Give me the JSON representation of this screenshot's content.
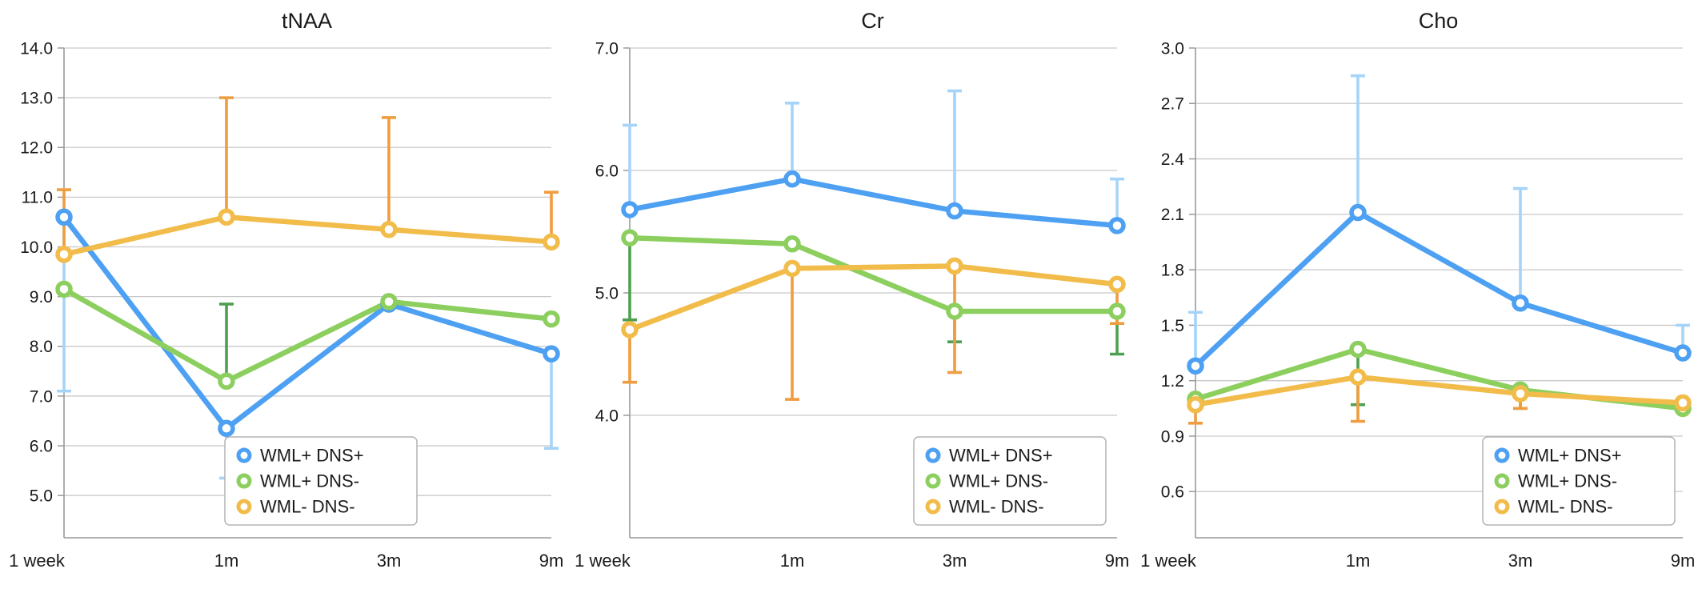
{
  "chart_data": [
    {
      "type": "line",
      "title": "tNAA",
      "categories": [
        "1 week",
        "1m",
        "3m",
        "9m"
      ],
      "xlabel": "",
      "ylabel": "",
      "grid": true,
      "y_ticks": [
        5.0,
        6.0,
        7.0,
        8.0,
        9.0,
        10.0,
        11.0,
        12.0,
        13.0,
        14.0
      ],
      "ylim": [
        4.15,
        14.0
      ],
      "legend": {
        "position": "bottom-right",
        "right_inset": 168,
        "bottom_inset": 16
      },
      "series": [
        {
          "name": "WML+ DNS+",
          "color": "#4DA0F2",
          "error_color": "#A6D4F8",
          "values": [
            10.6,
            6.35,
            8.85,
            7.85
          ],
          "err_down": [
            3.5,
            1.0,
            0,
            1.9
          ],
          "err_up": [
            0,
            0,
            0,
            0
          ]
        },
        {
          "name": "WML+ DNS-",
          "color": "#8CCF5F",
          "error_color": "#4FA050",
          "values": [
            9.15,
            7.3,
            8.9,
            8.55
          ],
          "err_down": [
            0,
            0,
            0,
            0
          ],
          "err_up": [
            0,
            1.55,
            0,
            0
          ]
        },
        {
          "name": "WML- DNS-",
          "color": "#F2BC4B",
          "error_color": "#EF9D3F",
          "values": [
            9.85,
            10.6,
            10.35,
            10.1
          ],
          "err_down": [
            0,
            0,
            0,
            0
          ],
          "err_up": [
            1.3,
            2.4,
            2.25,
            1.0
          ]
        }
      ]
    },
    {
      "type": "line",
      "title": "Cr",
      "categories": [
        "1 week",
        "1m",
        "3m",
        "9m"
      ],
      "xlabel": "",
      "ylabel": "",
      "grid": true,
      "y_ticks": [
        4.0,
        5.0,
        6.0,
        7.0
      ],
      "ylim": [
        3.0,
        7.0
      ],
      "legend": {
        "position": "bottom-right",
        "right_inset": 14,
        "bottom_inset": 16
      },
      "series": [
        {
          "name": "WML+ DNS+",
          "color": "#4DA0F2",
          "error_color": "#A6D4F8",
          "values": [
            5.68,
            5.93,
            5.67,
            5.55
          ],
          "err_down": [
            0,
            0,
            0,
            0
          ],
          "err_up": [
            0.69,
            0.62,
            0.98,
            0.38
          ]
        },
        {
          "name": "WML+ DNS-",
          "color": "#8CCF5F",
          "error_color": "#4FA050",
          "values": [
            5.45,
            5.4,
            4.85,
            4.85
          ],
          "err_down": [
            0.67,
            0,
            0.25,
            0.35
          ],
          "err_up": [
            0,
            0,
            0,
            0
          ]
        },
        {
          "name": "WML- DNS-",
          "color": "#F2BC4B",
          "error_color": "#EF9D3F",
          "values": [
            4.7,
            5.2,
            5.22,
            5.07
          ],
          "err_down": [
            0.43,
            1.07,
            0.87,
            0.32
          ],
          "err_up": [
            0,
            0,
            0,
            0
          ]
        }
      ]
    },
    {
      "type": "line",
      "title": "Cho",
      "categories": [
        "1 week",
        "1m",
        "3m",
        "9m"
      ],
      "xlabel": "",
      "ylabel": "",
      "grid": true,
      "y_ticks": [
        0.6,
        0.9,
        1.2,
        1.5,
        1.8,
        2.1,
        2.4,
        2.7,
        3.0
      ],
      "ylim": [
        0.35,
        3.0
      ],
      "legend": {
        "position": "bottom-right",
        "right_inset": 10,
        "bottom_inset": 16
      },
      "series": [
        {
          "name": "WML+ DNS+",
          "color": "#4DA0F2",
          "error_color": "#A6D4F8",
          "values": [
            1.28,
            2.11,
            1.62,
            1.35
          ],
          "err_down": [
            0,
            0,
            0,
            0
          ],
          "err_up": [
            0.29,
            0.74,
            0.62,
            0.15
          ]
        },
        {
          "name": "WML+ DNS-",
          "color": "#8CCF5F",
          "error_color": "#4FA050",
          "values": [
            1.1,
            1.37,
            1.15,
            1.05
          ],
          "err_down": [
            0,
            0.3,
            0.1,
            0
          ],
          "err_up": [
            0,
            0,
            0,
            0
          ]
        },
        {
          "name": "WML- DNS-",
          "color": "#F2BC4B",
          "error_color": "#EF9D3F",
          "values": [
            1.07,
            1.22,
            1.13,
            1.08
          ],
          "err_down": [
            0.1,
            0.24,
            0.08,
            0
          ],
          "err_up": [
            0,
            0,
            0,
            0
          ]
        }
      ]
    }
  ],
  "style": {
    "grid_color": "#c9c9c9",
    "axis_color": "#9a9a9a",
    "text_color": "#1a1a1a",
    "legend_border_color": "#b3b3b3",
    "background": "#ffffff"
  }
}
